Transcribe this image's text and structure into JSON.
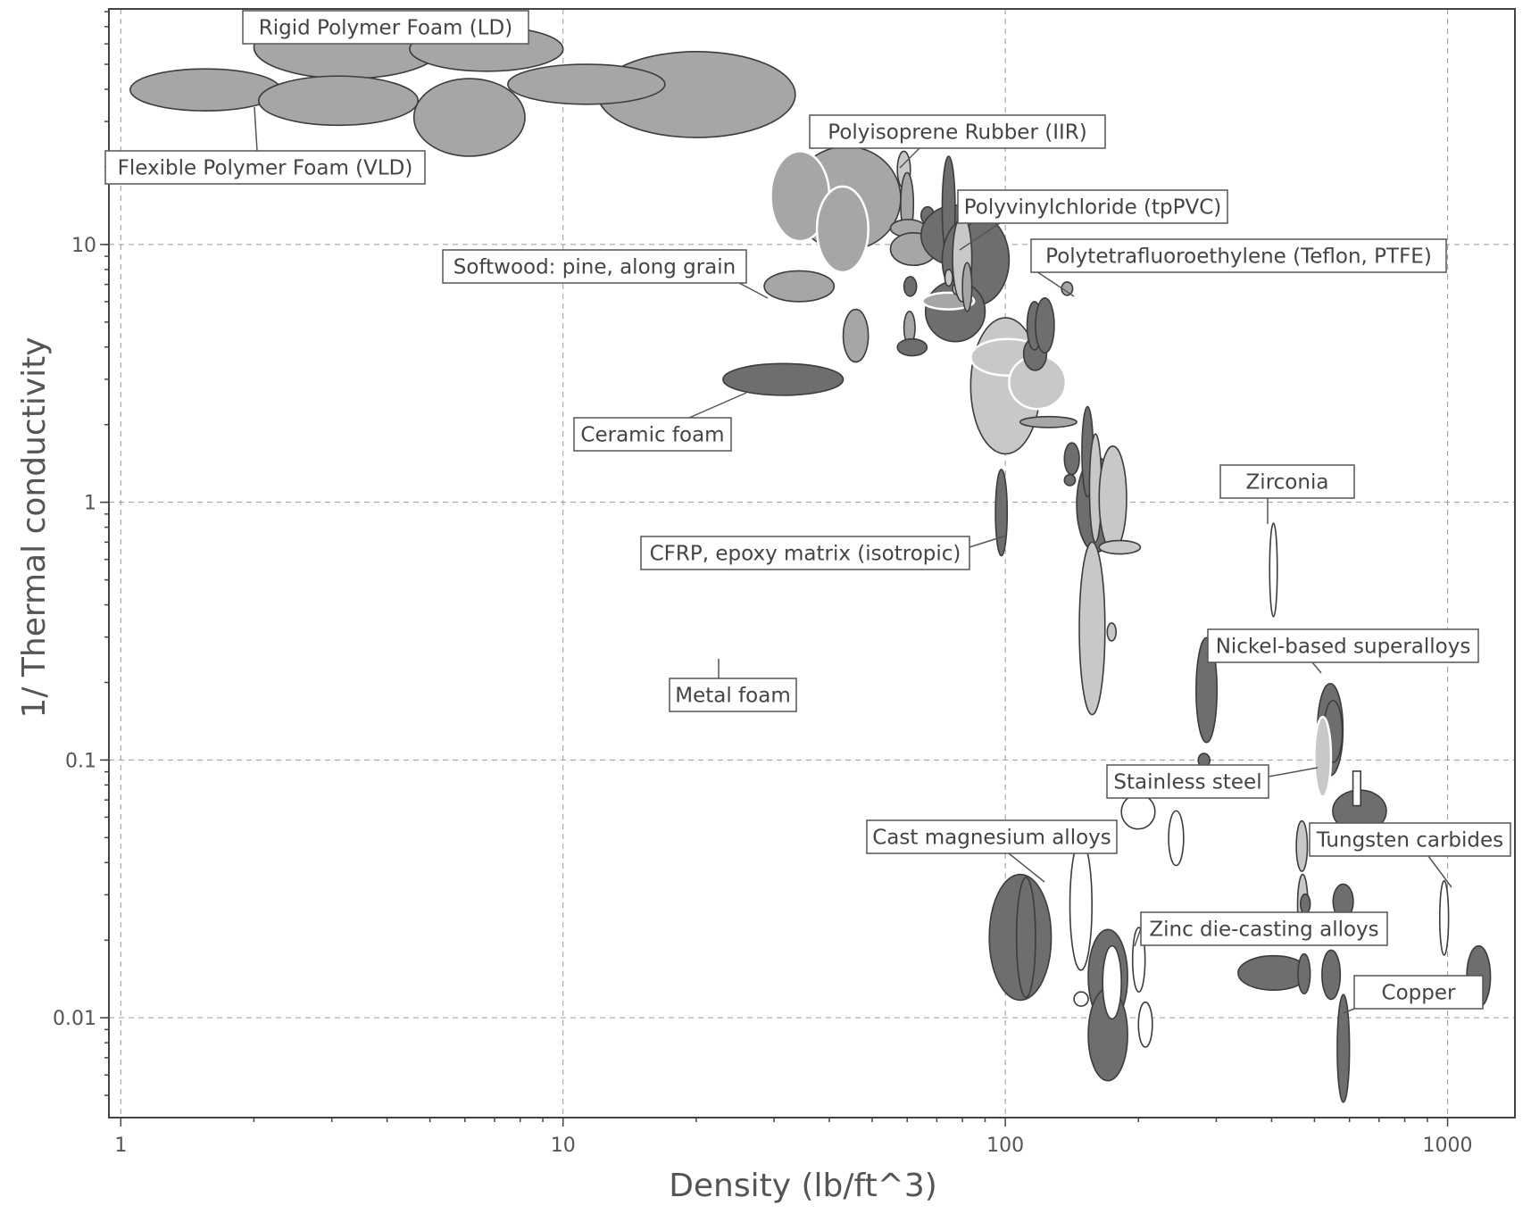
{
  "chart_data": {
    "type": "scatter",
    "xlabel": "Density (lb/ft^3)",
    "ylabel": "1/ Thermal conductivity",
    "xscale": "log",
    "yscale": "log",
    "xlim": [
      0.94,
      1420
    ],
    "ylim": [
      0.0041,
      82
    ],
    "grid": true,
    "xticks": [
      {
        "value": 1,
        "label": "1"
      },
      {
        "value": 10,
        "label": "10"
      },
      {
        "value": 100,
        "label": "100"
      },
      {
        "value": 1000,
        "label": "1000"
      }
    ],
    "yticks": [
      {
        "value": 0.01,
        "label": "0.01"
      },
      {
        "value": 0.1,
        "label": "0.1"
      },
      {
        "value": 1,
        "label": "1"
      },
      {
        "value": 10,
        "label": "10"
      }
    ],
    "colors": {
      "dark": "#6e6e6e",
      "mid": "#a6a6a6",
      "light": "#c8c8c8",
      "open": "#ffffff"
    },
    "bubbles": [
      {
        "x": [
          1.05,
          2.3
        ],
        "y": [
          33,
          48
        ],
        "shade": "mid"
      },
      {
        "x": [
          2.0,
          5.3
        ],
        "y": [
          44,
          77
        ],
        "shade": "mid"
      },
      {
        "x": [
          2.05,
          4.7
        ],
        "y": [
          29,
          45
        ],
        "shade": "mid"
      },
      {
        "x": [
          4.5,
          10.0
        ],
        "y": [
          47,
          70
        ],
        "shade": "mid"
      },
      {
        "x": [
          4.6,
          8.2
        ],
        "y": [
          22,
          44
        ],
        "shade": "mid"
      },
      {
        "x": [
          12.0,
          33.5
        ],
        "y": [
          26,
          56
        ],
        "shade": "mid"
      },
      {
        "x": [
          7.5,
          17.0
        ],
        "y": [
          35,
          50
        ],
        "shade": "mid"
      },
      {
        "x": [
          33.0,
          58.0
        ],
        "y": [
          9.5,
          24
        ],
        "shade": "mid"
      },
      {
        "x": [
          29.5,
          40.0
        ],
        "y": [
          10.3,
          23
        ],
        "shade": "mid",
        "outline": "#ffffff"
      },
      {
        "x": [
          37.5,
          49.0
        ],
        "y": [
          7.8,
          16.8
        ],
        "shade": "mid",
        "outline": "#ffffff"
      },
      {
        "x": [
          57.0,
          61.0
        ],
        "y": [
          16.5,
          23
        ],
        "shade": "light"
      },
      {
        "x": [
          58.0,
          62.0
        ],
        "y": [
          10.8,
          19
        ],
        "shade": "mid"
      },
      {
        "x": [
          55.0,
          66.0
        ],
        "y": [
          10.7,
          12.5
        ],
        "shade": "mid"
      },
      {
        "x": [
          55.0,
          70.0
        ],
        "y": [
          8.3,
          11.1
        ],
        "shade": "mid"
      },
      {
        "x": [
          64.5,
          69.0
        ],
        "y": [
          12.0,
          14.0
        ],
        "shade": "dark"
      },
      {
        "x": [
          64.5,
          93.0
        ],
        "y": [
          8.3,
          14.2
        ],
        "shade": "dark"
      },
      {
        "x": [
          72.0,
          77.0
        ],
        "y": [
          8.7,
          22
        ],
        "shade": "dark"
      },
      {
        "x": [
          72.0,
          102.0
        ],
        "y": [
          5.8,
          13.1
        ],
        "shade": "dark"
      },
      {
        "x": [
          66.0,
          90.0
        ],
        "y": [
          4.2,
          7.2
        ],
        "shade": "dark"
      },
      {
        "x": [
          65.0,
          85.0
        ],
        "y": [
          5.6,
          6.5
        ],
        "shade": "mid",
        "outline": "#ffffff"
      },
      {
        "x": [
          73.0,
          76.0
        ],
        "y": [
          6.9,
          8.0
        ],
        "shade": "light"
      },
      {
        "x": [
          76.0,
          79.0
        ],
        "y": [
          6.4,
          7.1
        ],
        "shade": "light"
      },
      {
        "x": [
          79.0,
          84.0
        ],
        "y": [
          11.7,
          13.5
        ],
        "shade": "light"
      },
      {
        "x": [
          76.0,
          84.0
        ],
        "y": [
          6.0,
          13.0
        ],
        "shade": "light"
      },
      {
        "x": [
          80.0,
          84.0
        ],
        "y": [
          5.5,
          8.5
        ],
        "shade": "mid"
      },
      {
        "x": [
          59.0,
          63.0
        ],
        "y": [
          6.3,
          7.5
        ],
        "shade": "dark"
      },
      {
        "x": [
          59.0,
          62.5
        ],
        "y": [
          4.1,
          5.5
        ],
        "shade": "mid"
      },
      {
        "x": [
          57.0,
          66.5
        ],
        "y": [
          3.7,
          4.3
        ],
        "shade": "dark"
      },
      {
        "x": [
          43.0,
          49.0
        ],
        "y": [
          3.5,
          5.6
        ],
        "shade": "mid"
      },
      {
        "x": [
          28.5,
          41.0
        ],
        "y": [
          6.0,
          7.9
        ],
        "shade": "mid"
      },
      {
        "x": [
          23.0,
          43.0
        ],
        "y": [
          2.6,
          3.45
        ],
        "shade": "dark"
      },
      {
        "x": [
          83.5,
          120.0
        ],
        "y": [
          1.54,
          5.2
        ],
        "shade": "light"
      },
      {
        "x": [
          83.5,
          123.0
        ],
        "y": [
          3.1,
          4.3
        ],
        "shade": "light",
        "outline": "#ffffff"
      },
      {
        "x": [
          102.0,
          137.0
        ],
        "y": [
          2.3,
          3.7
        ],
        "shade": "light",
        "outline": "#ffffff"
      },
      {
        "x": [
          110.0,
          124.0
        ],
        "y": [
          3.25,
          4.35
        ],
        "shade": "dark"
      },
      {
        "x": [
          112.0,
          121.0
        ],
        "y": [
          3.9,
          6.0
        ],
        "shade": "dark"
      },
      {
        "x": [
          117.0,
          129.0
        ],
        "y": [
          3.8,
          6.2
        ],
        "shade": "dark"
      },
      {
        "x": [
          108.0,
          145.0
        ],
        "y": [
          1.95,
          2.15
        ],
        "shade": "mid"
      },
      {
        "x": [
          134.0,
          142.0
        ],
        "y": [
          6.35,
          7.15
        ],
        "shade": "mid"
      },
      {
        "x": [
          95.0,
          101.0
        ],
        "y": [
          0.62,
          1.34
        ],
        "shade": "dark"
      },
      {
        "x": [
          145.0,
          178.0
        ],
        "y": [
          0.64,
          1.5
        ],
        "shade": "dark"
      },
      {
        "x": [
          149.0,
          158.0
        ],
        "y": [
          1.05,
          2.35
        ],
        "shade": "dark"
      },
      {
        "x": [
          136.0,
          147.0
        ],
        "y": [
          1.28,
          1.7
        ],
        "shade": "dark"
      },
      {
        "x": [
          136.0,
          144.0
        ],
        "y": [
          1.16,
          1.28
        ],
        "shade": "dark"
      },
      {
        "x": [
          155.0,
          165.0
        ],
        "y": [
          0.7,
          1.84
        ],
        "shade": "light"
      },
      {
        "x": [
          163.0,
          188.0
        ],
        "y": [
          0.65,
          1.65
        ],
        "shade": "light"
      },
      {
        "x": [
          147.0,
          168.0
        ],
        "y": [
          0.15,
          0.7
        ],
        "shade": "light"
      },
      {
        "x": [
          163.0,
          202.0
        ],
        "y": [
          0.63,
          0.71
        ],
        "shade": "light"
      },
      {
        "x": [
          170.0,
          178.0
        ],
        "y": [
          0.29,
          0.34
        ],
        "shade": "light"
      },
      {
        "x": [
          396.0,
          412.0
        ],
        "y": [
          0.36,
          0.83
        ],
        "shade": "open"
      },
      {
        "x": [
          270.0,
          301.0
        ],
        "y": [
          0.117,
          0.298
        ],
        "shade": "dark"
      },
      {
        "x": [
          273.0,
          290.0
        ],
        "y": [
          0.094,
          0.106
        ],
        "shade": "dark"
      },
      {
        "x": [
          508.0,
          580.0
        ],
        "y": [
          0.087,
          0.198
        ],
        "shade": "dark"
      },
      {
        "x": [
          525.0,
          578.0
        ],
        "y": [
          0.098,
          0.17
        ],
        "shade": "dark"
      },
      {
        "x": [
          500.0,
          545.0
        ],
        "y": [
          0.072,
          0.147
        ],
        "shade": "light",
        "outline": "#ffffff"
      },
      {
        "x": [
          550.0,
          727.0
        ],
        "y": [
          0.0525,
          0.0765
        ],
        "shade": "dark"
      },
      {
        "x": [
          611.0,
          636.0
        ],
        "y": [
          0.0665,
          0.0905
        ],
        "shade": "open",
        "rect": true
      },
      {
        "x": [
          183.0,
          218.0
        ],
        "y": [
          0.054,
          0.0735
        ],
        "shade": "open"
      },
      {
        "x": [
          234.0,
          253.0
        ],
        "y": [
          0.039,
          0.0635
        ],
        "shade": "open"
      },
      {
        "x": [
          455.0,
          482.0
        ],
        "y": [
          0.037,
          0.058
        ],
        "shade": "light"
      },
      {
        "x": [
          458.0,
          483.0
        ],
        "y": [
          0.021,
          0.036
        ],
        "shade": "light"
      },
      {
        "x": [
          465.0,
          489.0
        ],
        "y": [
          0.0253,
          0.0302
        ],
        "shade": "dark"
      },
      {
        "x": [
          551.0,
          612.0
        ],
        "y": [
          0.0242,
          0.033
        ],
        "shade": "dark"
      },
      {
        "x": [
          960.0,
          1005.0
        ],
        "y": [
          0.0175,
          0.034
        ],
        "shade": "open"
      },
      {
        "x": [
          1105.0,
          1250.0
        ],
        "y": [
          0.011,
          0.019
        ],
        "shade": "dark"
      },
      {
        "x": [
          92.0,
          127.0
        ],
        "y": [
          0.0117,
          0.036
        ],
        "shade": "dark"
      },
      {
        "x": [
          106.0,
          117.0
        ],
        "y": [
          0.012,
          0.035
        ],
        "shade": "dark"
      },
      {
        "x": [
          140.0,
          157.0
        ],
        "y": [
          0.0153,
          0.049
        ],
        "shade": "open"
      },
      {
        "x": [
          154.0,
          189.0
        ],
        "y": [
          0.0095,
          0.022
        ],
        "shade": "dark"
      },
      {
        "x": [
          154.0,
          189.0
        ],
        "y": [
          0.0057,
          0.013
        ],
        "shade": "dark"
      },
      {
        "x": [
          166.0,
          183.0
        ],
        "y": [
          0.0099,
          0.019
        ],
        "shade": "open"
      },
      {
        "x": [
          143.0,
          154.0
        ],
        "y": [
          0.0111,
          0.0126
        ],
        "shade": "open"
      },
      {
        "x": [
          194.0,
          207.0
        ],
        "y": [
          0.0126,
          0.0224
        ],
        "shade": "open"
      },
      {
        "x": [
          200.0,
          215.0
        ],
        "y": [
          0.0077,
          0.0115
        ],
        "shade": "open"
      },
      {
        "x": [
          336.0,
          486.0
        ],
        "y": [
          0.0128,
          0.0174
        ],
        "shade": "dark"
      },
      {
        "x": [
          459.0,
          489.0
        ],
        "y": [
          0.0124,
          0.0177
        ],
        "shade": "dark"
      },
      {
        "x": [
          520.0,
          572.0
        ],
        "y": [
          0.0118,
          0.0183
        ],
        "shade": "dark"
      },
      {
        "x": [
          563.0,
          600.0
        ],
        "y": [
          0.0047,
          0.0123
        ],
        "shade": "dark"
      }
    ],
    "annotations": [
      {
        "text": "Rigid Polymer Foam (LD)"
      },
      {
        "text": "Flexible Polymer Foam (VLD)"
      },
      {
        "text": "Polyisoprene Rubber (IIR)"
      },
      {
        "text": "Polyvinylchloride (tpPVC)"
      },
      {
        "text": "Polytetrafluoroethylene (Teflon, PTFE)"
      },
      {
        "text": "Softwood: pine, along grain"
      },
      {
        "text": "Ceramic foam"
      },
      {
        "text": "Zirconia"
      },
      {
        "text": "CFRP, epoxy matrix (isotropic)"
      },
      {
        "text": "Metal foam"
      },
      {
        "text": "Nickel-based superalloys"
      },
      {
        "text": "Stainless steel"
      },
      {
        "text": "Cast magnesium alloys"
      },
      {
        "text": "Tungsten carbides"
      },
      {
        "text": "Zinc die-casting alloys"
      },
      {
        "text": "Copper"
      }
    ]
  }
}
